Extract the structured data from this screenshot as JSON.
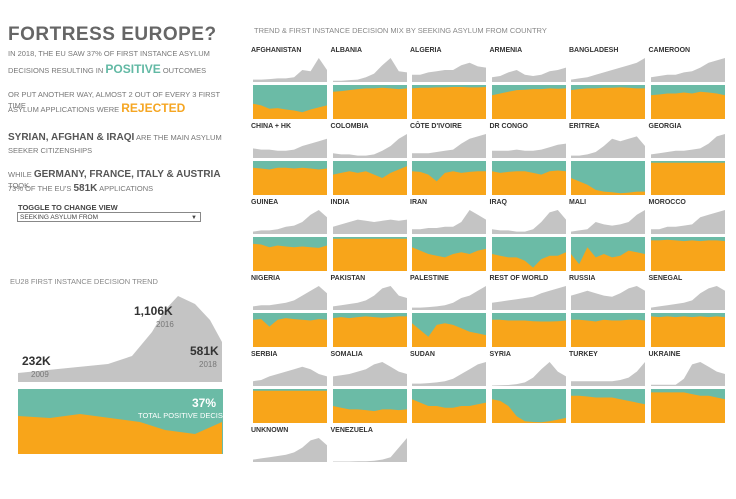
{
  "header": {
    "title": "FORTRESS EUROPE?",
    "l1a": "IN 2018, THE EU SAW 37% OF FIRST INSTANCE ASYLUM",
    "l1b": "DECISIONS RESULTING IN",
    "l1c": "POSITIVE",
    "l1d": "OUTCOMES",
    "l2a": "OR PUT ANOTHER WAY, ALMOST 2 OUT OF EVERY 3 FIRST TIME",
    "l2b": "ASYLUM APPLICATIONS WERE",
    "l2c": "REJECTED",
    "l3a": "SYRIAN, AFGHAN & IRAQI",
    "l3b": "ARE THE MAIN ASYLUM",
    "l3c": "SEEKER CITIZENSHIPS",
    "l4a": "WHILE",
    "l4b": "GERMANY, FRANCE, ITALY & AUSTRIA",
    "l4c": "TOOK",
    "l4d": "73% OF THE EU'S",
    "l4e": "581K",
    "l4f": "APPLICATIONS"
  },
  "toggle": {
    "label": "TOGGLE TO CHANGE VIEW",
    "value": "SEEKING ASYLUM FROM"
  },
  "trend": {
    "title": "EU28 FIRST INSTANCE DECISION TREND",
    "v2009": "232K",
    "y2009": "2009",
    "v2016": "1,106K",
    "y2016": "2016",
    "v2018": "581K",
    "y2018": "2018",
    "pct": "37%",
    "pct_label": "TOTAL POSITIVE DECISIONS"
  },
  "grid_title": "TREND & FIRST INSTANCE DECISION MIX BY SEEKING ASYLUM FROM COUNTRY",
  "colors": {
    "gray": "#c4c4c4",
    "teal": "#6bbba6",
    "orange": "#f8a51a"
  },
  "countries": [
    {
      "name": "AFGHANISTAN",
      "trend": [
        0.1,
        0.1,
        0.12,
        0.15,
        0.15,
        0.2,
        0.5,
        0.45,
        1.0,
        0.5
      ],
      "pos": [
        0.55,
        0.6,
        0.7,
        0.68,
        0.72,
        0.75,
        0.8,
        0.72,
        0.66,
        0.6
      ]
    },
    {
      "name": "ALBANIA",
      "trend": [
        0.05,
        0.05,
        0.08,
        0.1,
        0.2,
        0.35,
        0.7,
        1.0,
        0.45,
        0.4
      ],
      "pos": [
        0.2,
        0.18,
        0.15,
        0.12,
        0.1,
        0.1,
        0.08,
        0.1,
        0.12,
        0.1
      ]
    },
    {
      "name": "ALGERIA",
      "trend": [
        0.3,
        0.3,
        0.4,
        0.45,
        0.5,
        0.5,
        0.7,
        0.8,
        0.65,
        0.6
      ],
      "pos": [
        0.1,
        0.08,
        0.08,
        0.07,
        0.07,
        0.06,
        0.06,
        0.07,
        0.07,
        0.06
      ]
    },
    {
      "name": "ARMENIA",
      "trend": [
        0.2,
        0.25,
        0.4,
        0.5,
        0.3,
        0.25,
        0.3,
        0.45,
        0.5,
        0.6
      ],
      "pos": [
        0.3,
        0.25,
        0.2,
        0.15,
        0.14,
        0.12,
        0.12,
        0.1,
        0.11,
        0.1
      ]
    },
    {
      "name": "BANGLADESH",
      "trend": [
        0.1,
        0.15,
        0.2,
        0.3,
        0.4,
        0.5,
        0.6,
        0.7,
        0.8,
        1.0
      ],
      "pos": [
        0.15,
        0.12,
        0.1,
        0.1,
        0.08,
        0.08,
        0.07,
        0.08,
        0.1,
        0.1
      ]
    },
    {
      "name": "CAMEROON",
      "trend": [
        0.2,
        0.25,
        0.3,
        0.3,
        0.4,
        0.45,
        0.6,
        0.8,
        0.9,
        1.0
      ],
      "pos": [
        0.3,
        0.28,
        0.25,
        0.25,
        0.22,
        0.25,
        0.2,
        0.22,
        0.25,
        0.3
      ]
    },
    {
      "name": "CHINA + HK",
      "trend": [
        0.4,
        0.35,
        0.35,
        0.3,
        0.3,
        0.35,
        0.5,
        0.6,
        0.7,
        0.8
      ],
      "pos": [
        0.2,
        0.22,
        0.25,
        0.2,
        0.2,
        0.22,
        0.2,
        0.22,
        0.25,
        0.22
      ]
    },
    {
      "name": "COLOMBIA",
      "trend": [
        0.2,
        0.15,
        0.15,
        0.1,
        0.1,
        0.15,
        0.3,
        0.5,
        0.8,
        1.0
      ],
      "pos": [
        0.4,
        0.35,
        0.3,
        0.35,
        0.3,
        0.4,
        0.5,
        0.35,
        0.25,
        0.15
      ]
    },
    {
      "name": "CÔTE D'IVOIRE",
      "trend": [
        0.2,
        0.2,
        0.2,
        0.25,
        0.3,
        0.35,
        0.6,
        0.8,
        0.9,
        1.0
      ],
      "pos": [
        0.3,
        0.32,
        0.4,
        0.6,
        0.35,
        0.3,
        0.35,
        0.32,
        0.3,
        0.3
      ]
    },
    {
      "name": "DR CONGO",
      "trend": [
        0.3,
        0.3,
        0.3,
        0.35,
        0.3,
        0.3,
        0.35,
        0.45,
        0.55,
        0.6
      ],
      "pos": [
        0.3,
        0.35,
        0.32,
        0.3,
        0.3,
        0.35,
        0.4,
        0.3,
        0.28,
        0.3
      ]
    },
    {
      "name": "ERITREA",
      "trend": [
        0.1,
        0.1,
        0.15,
        0.25,
        0.5,
        0.8,
        0.7,
        0.8,
        0.9,
        0.5
      ],
      "pos": [
        0.5,
        0.6,
        0.7,
        0.85,
        0.9,
        0.92,
        0.95,
        0.93,
        0.9,
        0.9
      ]
    },
    {
      "name": "GEORGIA",
      "trend": [
        0.15,
        0.2,
        0.25,
        0.3,
        0.3,
        0.35,
        0.4,
        0.6,
        0.9,
        1.0
      ],
      "pos": [
        0.05,
        0.05,
        0.05,
        0.05,
        0.05,
        0.05,
        0.05,
        0.05,
        0.05,
        0.05
      ]
    },
    {
      "name": "GUINEA",
      "trend": [
        0.1,
        0.15,
        0.15,
        0.2,
        0.3,
        0.35,
        0.5,
        0.8,
        1.0,
        0.7
      ],
      "pos": [
        0.2,
        0.22,
        0.3,
        0.25,
        0.28,
        0.3,
        0.28,
        0.3,
        0.32,
        0.25
      ]
    },
    {
      "name": "INDIA",
      "trend": [
        0.3,
        0.4,
        0.5,
        0.6,
        0.55,
        0.5,
        0.55,
        0.6,
        0.55,
        0.6
      ],
      "pos": [
        0.05,
        0.05,
        0.05,
        0.05,
        0.05,
        0.05,
        0.05,
        0.05,
        0.05,
        0.05
      ]
    },
    {
      "name": "IRAN",
      "trend": [
        0.2,
        0.2,
        0.25,
        0.25,
        0.3,
        0.3,
        0.5,
        1.0,
        0.8,
        0.6
      ],
      "pos": [
        0.3,
        0.4,
        0.5,
        0.55,
        0.6,
        0.5,
        0.45,
        0.5,
        0.4,
        0.35
      ]
    },
    {
      "name": "IRAQ",
      "trend": [
        0.2,
        0.15,
        0.15,
        0.1,
        0.1,
        0.2,
        0.5,
        0.9,
        1.0,
        0.6
      ],
      "pos": [
        0.5,
        0.55,
        0.6,
        0.6,
        0.7,
        0.9,
        0.65,
        0.55,
        0.55,
        0.45
      ]
    },
    {
      "name": "MALI",
      "trend": [
        0.1,
        0.15,
        0.2,
        0.5,
        0.4,
        0.35,
        0.4,
        0.5,
        0.8,
        1.0
      ],
      "pos": [
        0.5,
        0.8,
        0.3,
        0.6,
        0.5,
        0.6,
        0.55,
        0.4,
        0.45,
        0.5
      ]
    },
    {
      "name": "MOROCCO",
      "trend": [
        0.2,
        0.2,
        0.3,
        0.3,
        0.35,
        0.4,
        0.7,
        0.8,
        0.9,
        1.0
      ],
      "pos": [
        0.1,
        0.1,
        0.08,
        0.1,
        0.12,
        0.1,
        0.12,
        0.1,
        0.1,
        0.12
      ]
    },
    {
      "name": "NIGERIA",
      "trend": [
        0.15,
        0.2,
        0.2,
        0.25,
        0.3,
        0.4,
        0.6,
        0.8,
        1.0,
        0.7
      ],
      "pos": [
        0.2,
        0.18,
        0.4,
        0.2,
        0.15,
        0.18,
        0.2,
        0.22,
        0.18,
        0.2
      ]
    },
    {
      "name": "PAKISTAN",
      "trend": [
        0.15,
        0.2,
        0.25,
        0.3,
        0.4,
        0.6,
        0.9,
        1.0,
        0.6,
        0.5
      ],
      "pos": [
        0.15,
        0.12,
        0.15,
        0.12,
        0.1,
        0.12,
        0.14,
        0.12,
        0.1,
        0.1
      ]
    },
    {
      "name": "PALESTINE",
      "trend": [
        0.1,
        0.1,
        0.12,
        0.15,
        0.2,
        0.3,
        0.5,
        0.6,
        0.8,
        1.0
      ],
      "pos": [
        0.3,
        0.5,
        0.7,
        0.35,
        0.3,
        0.35,
        0.45,
        0.55,
        0.6,
        0.65
      ]
    },
    {
      "name": "REST OF WORLD",
      "trend": [
        0.3,
        0.35,
        0.4,
        0.45,
        0.5,
        0.55,
        0.7,
        0.8,
        0.9,
        1.0
      ],
      "pos": [
        0.2,
        0.2,
        0.22,
        0.22,
        0.22,
        0.24,
        0.25,
        0.25,
        0.24,
        0.22
      ]
    },
    {
      "name": "RUSSIA",
      "trend": [
        0.6,
        0.7,
        0.8,
        0.7,
        0.6,
        0.55,
        0.7,
        0.9,
        1.0,
        0.8
      ],
      "pos": [
        0.2,
        0.2,
        0.22,
        0.25,
        0.2,
        0.22,
        0.22,
        0.2,
        0.2,
        0.22
      ]
    },
    {
      "name": "SENEGAL",
      "trend": [
        0.1,
        0.15,
        0.2,
        0.25,
        0.3,
        0.4,
        0.7,
        0.9,
        1.0,
        0.8
      ],
      "pos": [
        0.1,
        0.12,
        0.1,
        0.12,
        0.1,
        0.12,
        0.1,
        0.12,
        0.1,
        0.12
      ]
    },
    {
      "name": "SERBIA",
      "trend": [
        0.2,
        0.25,
        0.4,
        0.5,
        0.6,
        0.7,
        0.8,
        0.7,
        0.5,
        0.4
      ],
      "pos": [
        0.05,
        0.05,
        0.05,
        0.05,
        0.05,
        0.05,
        0.05,
        0.05,
        0.05,
        0.05
      ]
    },
    {
      "name": "SOMALIA",
      "trend": [
        0.4,
        0.45,
        0.5,
        0.6,
        0.7,
        0.9,
        1.0,
        0.8,
        0.6,
        0.5
      ],
      "pos": [
        0.5,
        0.55,
        0.6,
        0.6,
        0.62,
        0.65,
        0.6,
        0.6,
        0.62,
        0.6
      ]
    },
    {
      "name": "SUDAN",
      "trend": [
        0.1,
        0.1,
        0.12,
        0.15,
        0.2,
        0.3,
        0.5,
        0.7,
        0.9,
        1.0
      ],
      "pos": [
        0.3,
        0.4,
        0.5,
        0.5,
        0.55,
        0.55,
        0.5,
        0.5,
        0.45,
        0.4
      ]
    },
    {
      "name": "SYRIA",
      "trend": [
        0.02,
        0.03,
        0.04,
        0.08,
        0.15,
        0.35,
        0.7,
        1.0,
        0.6,
        0.4
      ],
      "pos": [
        0.3,
        0.35,
        0.5,
        0.8,
        0.95,
        0.97,
        0.98,
        0.95,
        0.9,
        0.85
      ]
    },
    {
      "name": "TURKEY",
      "trend": [
        0.2,
        0.2,
        0.2,
        0.2,
        0.2,
        0.2,
        0.25,
        0.35,
        0.6,
        1.0
      ],
      "pos": [
        0.2,
        0.2,
        0.22,
        0.25,
        0.25,
        0.25,
        0.3,
        0.35,
        0.4,
        0.45
      ]
    },
    {
      "name": "UKRAINE",
      "trend": [
        0.05,
        0.05,
        0.05,
        0.05,
        0.3,
        0.9,
        1.0,
        0.8,
        0.6,
        0.5
      ],
      "pos": [
        0.1,
        0.1,
        0.1,
        0.1,
        0.1,
        0.15,
        0.2,
        0.2,
        0.25,
        0.3
      ]
    },
    {
      "name": "UNKNOWN",
      "trend": [
        0.1,
        0.15,
        0.2,
        0.25,
        0.3,
        0.4,
        0.6,
        0.9,
        1.0,
        0.7
      ],
      "pos": []
    },
    {
      "name": "VENEZUELA",
      "trend": [
        0.02,
        0.02,
        0.02,
        0.03,
        0.03,
        0.05,
        0.1,
        0.2,
        0.6,
        1.0
      ],
      "pos": []
    }
  ]
}
